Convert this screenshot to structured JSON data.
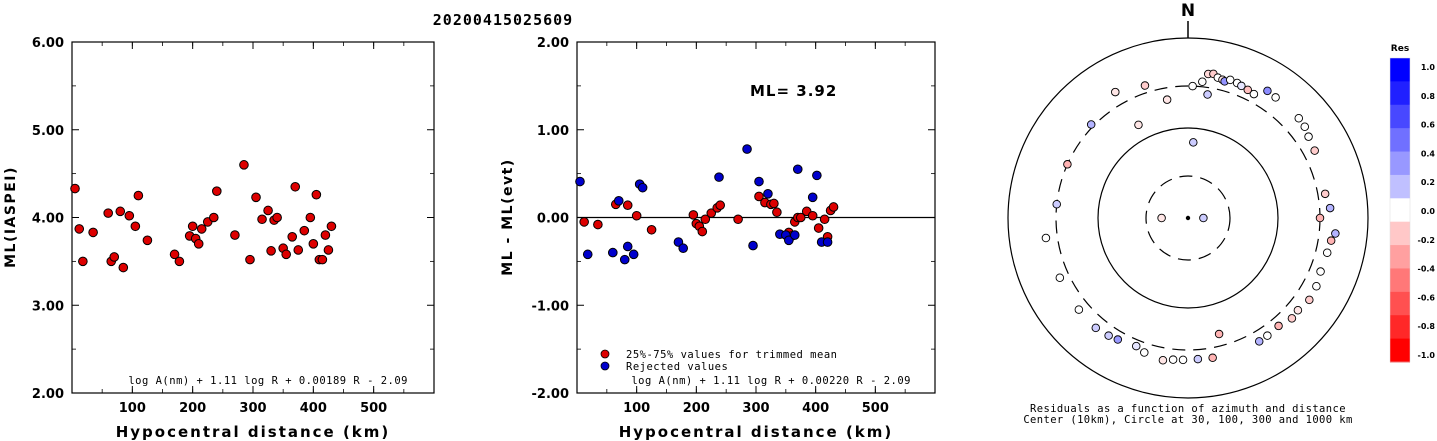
{
  "chart_data": [
    {
      "type": "scatter",
      "title": "20200415025609",
      "xlabel": "Hypocentral distance (km)",
      "ylabel": "ML(IASPEI)",
      "xlim": [
        0,
        600
      ],
      "ylim": [
        2.0,
        6.0
      ],
      "xticks": [
        "100",
        "200",
        "300",
        "400",
        "500"
      ],
      "yticks": [
        "2.00",
        "3.00",
        "4.00",
        "5.00",
        "6.00"
      ],
      "formula": "log A(nm) + 1.11 log R + 0.00189 R - 2.09",
      "grid": false,
      "marker_color": "#dd0000",
      "series": [
        {
          "x": [
            5,
            12,
            18,
            35,
            60,
            65,
            70,
            80,
            85,
            95,
            105,
            110,
            125,
            170,
            178,
            195,
            200,
            205,
            210,
            215,
            225,
            235,
            240,
            270,
            285,
            295,
            305,
            315,
            325,
            330,
            335,
            340,
            350,
            355,
            365,
            370,
            375,
            385,
            395,
            400,
            405,
            410,
            415,
            420,
            425,
            430
          ],
          "y": [
            4.33,
            3.87,
            3.5,
            3.83,
            4.05,
            3.5,
            3.55,
            4.07,
            3.43,
            4.02,
            3.9,
            4.25,
            3.74,
            3.58,
            3.5,
            3.79,
            3.9,
            3.76,
            3.7,
            3.87,
            3.95,
            4.0,
            4.3,
            3.8,
            4.6,
            3.52,
            4.23,
            3.98,
            4.08,
            3.62,
            3.97,
            4.0,
            3.65,
            3.58,
            3.78,
            4.35,
            3.63,
            3.85,
            4.0,
            3.7,
            4.26,
            3.52,
            3.52,
            3.8,
            3.63,
            3.9
          ]
        }
      ]
    },
    {
      "type": "scatter",
      "xlabel": "Hypocentral distance (km)",
      "ylabel": "ML - ML(evt)",
      "xlim": [
        0,
        600
      ],
      "ylim": [
        -2.0,
        2.0
      ],
      "xticks": [
        "100",
        "200",
        "300",
        "400",
        "500"
      ],
      "yticks": [
        "-2.00",
        "-1.00",
        "0.00",
        "1.00",
        "2.00"
      ],
      "annotation": "ML= 3.92",
      "formula": "log A(nm) + 1.11 log R + 0.00220 R - 2.09",
      "grid": false,
      "legend": "bottom-left",
      "series": [
        {
          "name": "25%-75% values for trimmed mean",
          "color": "#dd0000",
          "x": [
            12,
            35,
            65,
            85,
            100,
            125,
            195,
            200,
            205,
            210,
            215,
            225,
            235,
            240,
            270,
            305,
            315,
            325,
            330,
            335,
            355,
            360,
            365,
            370,
            375,
            385,
            395,
            405,
            415,
            420,
            425,
            430
          ],
          "y": [
            -0.05,
            -0.08,
            0.15,
            0.14,
            0.02,
            -0.14,
            0.03,
            -0.07,
            -0.1,
            -0.16,
            -0.02,
            0.05,
            0.11,
            0.14,
            -0.02,
            0.24,
            0.17,
            0.15,
            0.16,
            0.06,
            -0.17,
            -0.21,
            -0.05,
            0.0,
            0.0,
            0.07,
            0.02,
            -0.12,
            -0.02,
            -0.22,
            0.08,
            0.12
          ]
        },
        {
          "name": "Rejected values",
          "color": "#0000cc",
          "x": [
            5,
            18,
            60,
            70,
            80,
            85,
            95,
            105,
            110,
            170,
            178,
            238,
            285,
            295,
            305,
            320,
            340,
            350,
            355,
            365,
            370,
            395,
            402,
            410,
            420
          ],
          "y": [
            0.41,
            -0.42,
            -0.4,
            0.19,
            -0.48,
            -0.33,
            -0.42,
            0.38,
            0.34,
            -0.28,
            -0.35,
            0.46,
            0.78,
            -0.32,
            0.41,
            0.27,
            -0.19,
            -0.2,
            -0.26,
            -0.2,
            0.55,
            0.23,
            0.48,
            -0.28,
            -0.28
          ]
        }
      ]
    },
    {
      "type": "scatter",
      "subtype": "polar",
      "north_label": "N",
      "caption_line1": "Residuals as a function of azimuth and distance",
      "caption_line2": "Center (10km), Circle at 30, 100, 300 and 1000 km",
      "colorbar_title": "Res",
      "colorbar_ticks": [
        "1.0",
        "0.8",
        "0.6",
        "0.4",
        "0.2",
        "0.0",
        "-0.2",
        "-0.4",
        "-0.6",
        "-0.8",
        "-1.0"
      ],
      "colorbar_colors": [
        "#0000ff",
        "#2020ff",
        "#4848ff",
        "#7070ff",
        "#9898ff",
        "#c0c0ff",
        "#ffffff",
        "#ffc8c8",
        "#ffa0a0",
        "#ff7878",
        "#ff5050",
        "#ff2828",
        "#ff0000"
      ],
      "rings_km": [
        30,
        100,
        300,
        1000
      ],
      "center_km": 10,
      "points": {
        "azimuth_deg": [
          8,
          10,
          12,
          14,
          15,
          6,
          2,
          9,
          17,
          20,
          22,
          25,
          28,
          32,
          36,
          48,
          52,
          56,
          62,
          80,
          86,
          96,
          99,
          104,
          112,
          118,
          124,
          130,
          134,
          140,
          146,
          150,
          165,
          170,
          176,
          182,
          186,
          190,
          198,
          202,
          210,
          214,
          220,
          230,
          245,
          262,
          276,
          294,
          314,
          332,
          330,
          342,
          350,
          4
        ],
        "distance_km": [
          420,
          430,
          400,
          390,
          380,
          340,
          300,
          250,
          410,
          402,
          390,
          380,
          370,
          470,
          460,
          460,
          450,
          420,
          400,
          360,
          390,
          450,
          415,
          400,
          395,
          420,
          430,
          400,
          410,
          375,
          385,
          390,
          220,
          385,
          380,
          385,
          390,
          410,
          380,
          350,
          370,
          385,
          400,
          390,
          380,
          400,
          300,
          300,
          320,
          150,
          420,
          360,
          220,
          70
        ],
        "residual": [
          -0.15,
          -0.2,
          0.0,
          -0.1,
          0.42,
          0.0,
          0.0,
          0.2,
          0.0,
          0.0,
          0.1,
          -0.25,
          0.0,
          0.45,
          0.0,
          0.0,
          0.0,
          0.0,
          -0.2,
          -0.2,
          0.3,
          0.3,
          -0.3,
          0.0,
          0.0,
          0.0,
          -0.2,
          -0.1,
          -0.2,
          -0.3,
          0.0,
          0.3,
          -0.3,
          -0.3,
          0.2,
          0.0,
          0.0,
          -0.1,
          0.0,
          0.1,
          0.4,
          0.2,
          0.2,
          0.0,
          0.0,
          0.0,
          0.2,
          -0.3,
          0.3,
          -0.1,
          -0.1,
          -0.2,
          -0.1,
          0.2
        ],
        "near_center": [
          {
            "dx": -12,
            "dy": 0,
            "residual": -0.1
          },
          {
            "dx": 7,
            "dy": 0,
            "residual": 0.2
          },
          {
            "dx": 60,
            "dy": 0,
            "residual": -0.3
          }
        ]
      }
    }
  ]
}
